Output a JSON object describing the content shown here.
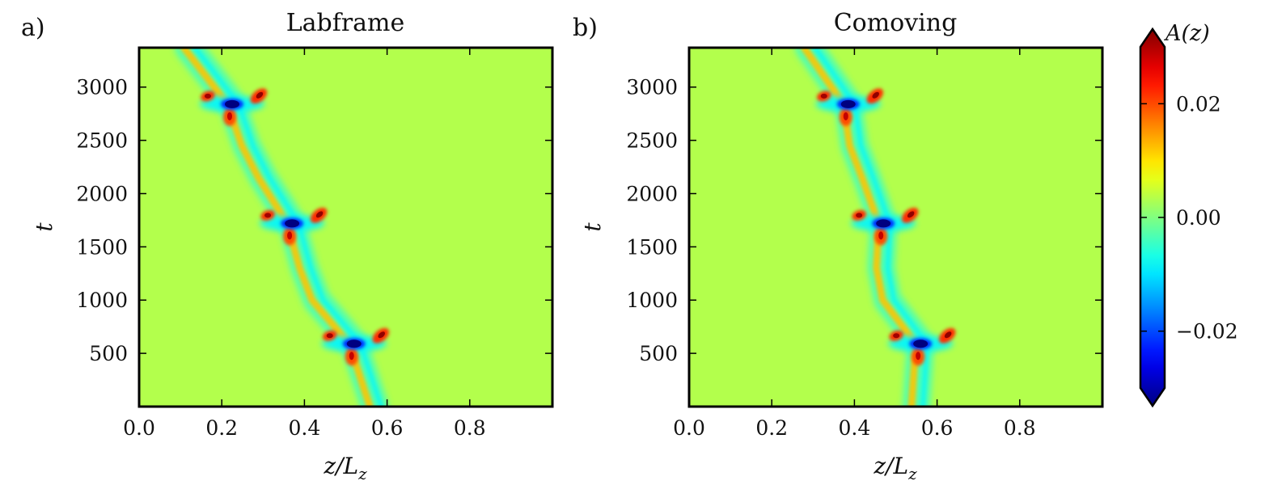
{
  "chart_data": [
    {
      "type": "heatmap",
      "panel_label": "a)",
      "title": "Labframe",
      "xlabel_base": "z/L",
      "xlabel_sub": "z",
      "ylabel": "t",
      "xlim": [
        0.0,
        1.0
      ],
      "ylim": [
        0,
        3370
      ],
      "xticks": [
        0.0,
        0.2,
        0.4,
        0.6,
        0.8
      ],
      "xtick_labels": [
        "0.0",
        "0.2",
        "0.4",
        "0.6",
        "0.8"
      ],
      "yticks": [
        500,
        1000,
        1500,
        2000,
        2500,
        3000
      ],
      "ytick_labels": [
        "500",
        "1000",
        "1500",
        "2000",
        "2500",
        "3000"
      ],
      "colormap": "jet",
      "background_value": 0.003,
      "events": [
        {
          "t": 590,
          "z": 0.52
        },
        {
          "t": 1720,
          "z": 0.37
        },
        {
          "t": 2840,
          "z": 0.225
        }
      ],
      "track_points": [
        [
          0,
          0.57
        ],
        [
          590,
          0.52
        ],
        [
          1000,
          0.43
        ],
        [
          1300,
          0.4
        ],
        [
          1720,
          0.37
        ],
        [
          2150,
          0.3
        ],
        [
          2450,
          0.26
        ],
        [
          2840,
          0.225
        ],
        [
          3370,
          0.12
        ]
      ]
    },
    {
      "type": "heatmap",
      "panel_label": "b)",
      "title": "Comoving",
      "xlabel_base": "z/L",
      "xlabel_sub": "z",
      "ylabel": "t",
      "xlim": [
        0.0,
        1.0
      ],
      "ylim": [
        0,
        3370
      ],
      "xticks": [
        0.0,
        0.2,
        0.4,
        0.6,
        0.8
      ],
      "xtick_labels": [
        "0.0",
        "0.2",
        "0.4",
        "0.6",
        "0.8"
      ],
      "yticks": [
        500,
        1000,
        1500,
        2000,
        2500,
        3000
      ],
      "ytick_labels": [
        "500",
        "1000",
        "1500",
        "2000",
        "2500",
        "3000"
      ],
      "colormap": "jet",
      "background_value": 0.003,
      "events": [
        {
          "t": 590,
          "z": 0.56
        },
        {
          "t": 1720,
          "z": 0.47
        },
        {
          "t": 2840,
          "z": 0.385
        }
      ],
      "track_points": [
        [
          0,
          0.55
        ],
        [
          590,
          0.56
        ],
        [
          1000,
          0.48
        ],
        [
          1300,
          0.465
        ],
        [
          1720,
          0.47
        ],
        [
          2150,
          0.43
        ],
        [
          2450,
          0.4
        ],
        [
          2840,
          0.385
        ],
        [
          3370,
          0.29
        ]
      ]
    }
  ],
  "colorbar": {
    "label": "A(z)",
    "vmin": -0.03,
    "vmax": 0.03,
    "ticks": [
      0.02,
      0.0,
      -0.02
    ],
    "tick_labels": [
      "0.02",
      "0.00",
      "−0.02"
    ],
    "extend": "both",
    "colormap": "jet"
  }
}
